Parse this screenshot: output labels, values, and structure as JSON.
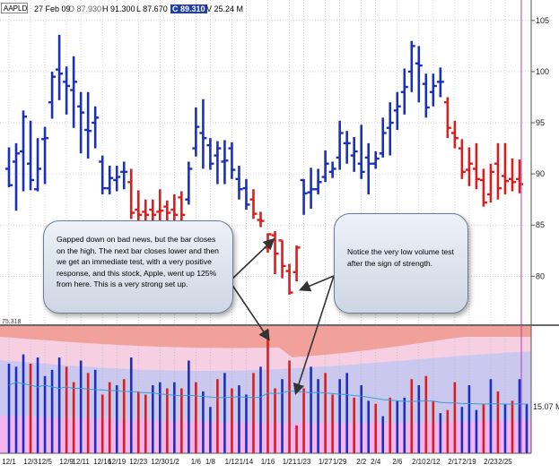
{
  "header": {
    "symbol": "AAPLD",
    "date": "27 Feb 09",
    "open": "O 87.930",
    "high": "H 91.300",
    "low": "L 87.670",
    "close": "C 89.310",
    "volume": "V 25.24 M"
  },
  "annotations": {
    "left": "Gapped down on bad news, but the bar closes on the high. The next bar closes lower and then we get an immediate test, with a very positive response, and this stock, Apple, went up 125% from here. This is a very strong set up.",
    "right": "Notice the very low volume test after the sign of strength."
  },
  "colors": {
    "up": "#1a2fc4",
    "down": "#e01b1b",
    "volume_ma": "#3a9bd6",
    "grid": "#b5b5b5",
    "pane_divider": "#6a6a6a",
    "cursor_line": "#b040b0",
    "zone_top": "#f2a19a",
    "zone_mid_pink": "#f6cfe2",
    "zone_lavender": "#cbc8ef",
    "zone_low_pink": "#f3b4ef"
  },
  "chart_data": [
    {
      "type": "ohlc",
      "title": "",
      "ylim": [
        75.3,
        107
      ],
      "yticks": [
        80,
        85,
        90,
        95,
        100,
        105
      ],
      "partial_tick_label": "75.318",
      "x_tick_labels": [
        "12/1",
        "12/3",
        "12/5",
        "12/9",
        "12/11",
        "12/16",
        "12/19",
        "12/23",
        "12/30",
        "1/2",
        "1/6",
        "1/8",
        "1/12",
        "1/14",
        "1/16",
        "1/21",
        "1/23",
        "1/27",
        "1/29",
        "2/2",
        "2/4",
        "2/6",
        "2/10",
        "2/12",
        "2/17",
        "2/19",
        "2/23",
        "2/25"
      ],
      "bars": [
        {
          "o": 90.5,
          "h": 92.6,
          "l": 88.7,
          "c": 88.9,
          "dir": "up"
        },
        {
          "o": 91.2,
          "h": 93.0,
          "l": 86.4,
          "c": 92.0,
          "dir": "up"
        },
        {
          "o": 92.2,
          "h": 96.2,
          "l": 88.3,
          "c": 95.6,
          "dir": "up"
        },
        {
          "o": 91.0,
          "h": 95.2,
          "l": 88.4,
          "c": 89.4,
          "dir": "up"
        },
        {
          "o": 88.5,
          "h": 93.5,
          "l": 88.3,
          "c": 90.5,
          "dir": "up"
        },
        {
          "o": 93.4,
          "h": 94.6,
          "l": 89.0,
          "c": 93.5,
          "dir": "up"
        },
        {
          "o": 97.0,
          "h": 100.0,
          "l": 95.4,
          "c": 99.5,
          "dir": "up"
        },
        {
          "o": 100.2,
          "h": 103.6,
          "l": 97.2,
          "c": 99.8,
          "dir": "up"
        },
        {
          "o": 99.0,
          "h": 100.5,
          "l": 95.8,
          "c": 98.6,
          "dir": "up"
        },
        {
          "o": 98.2,
          "h": 101.5,
          "l": 94.5,
          "c": 99.0,
          "dir": "up"
        },
        {
          "o": 96.6,
          "h": 98.0,
          "l": 92.0,
          "c": 96.0,
          "dir": "up"
        },
        {
          "o": 94.3,
          "h": 98.0,
          "l": 91.5,
          "c": 94.2,
          "dir": "up"
        },
        {
          "o": 95.0,
          "h": 96.6,
          "l": 92.5,
          "c": 95.5,
          "dir": "up"
        },
        {
          "o": 91.2,
          "h": 91.8,
          "l": 88.0,
          "c": 88.6,
          "dir": "up"
        },
        {
          "o": 88.6,
          "h": 90.8,
          "l": 88.0,
          "c": 89.6,
          "dir": "up"
        },
        {
          "o": 89.4,
          "h": 90.8,
          "l": 88.3,
          "c": 89.7,
          "dir": "up"
        },
        {
          "o": 90.2,
          "h": 91.2,
          "l": 88.5,
          "c": 90.2,
          "dir": "up"
        },
        {
          "o": 89.2,
          "h": 90.5,
          "l": 85.6,
          "c": 86.2,
          "dir": "down"
        },
        {
          "o": 86.5,
          "h": 88.4,
          "l": 85.2,
          "c": 86.0,
          "dir": "down"
        },
        {
          "o": 86.3,
          "h": 87.5,
          "l": 85.2,
          "c": 86.0,
          "dir": "down"
        },
        {
          "o": 86.5,
          "h": 87.5,
          "l": 85.2,
          "c": 86.0,
          "dir": "down"
        },
        {
          "o": 86.3,
          "h": 88.5,
          "l": 85.4,
          "c": 86.4,
          "dir": "down"
        },
        {
          "o": 86.8,
          "h": 87.4,
          "l": 85.3,
          "c": 86.2,
          "dir": "down"
        },
        {
          "o": 86.5,
          "h": 88.0,
          "l": 85.2,
          "c": 86.0,
          "dir": "down"
        },
        {
          "o": 87.7,
          "h": 88.3,
          "l": 85.4,
          "c": 86.0,
          "dir": "down"
        },
        {
          "o": 87.5,
          "h": 91.2,
          "l": 87.0,
          "c": 90.5,
          "dir": "up"
        },
        {
          "o": 92.5,
          "h": 96.5,
          "l": 91.7,
          "c": 94.6,
          "dir": "up"
        },
        {
          "o": 94.0,
          "h": 97.3,
          "l": 90.5,
          "c": 93.5,
          "dir": "up"
        },
        {
          "o": 92.8,
          "h": 93.5,
          "l": 90.4,
          "c": 91.0,
          "dir": "up"
        },
        {
          "o": 91.8,
          "h": 93.2,
          "l": 89.0,
          "c": 92.5,
          "dir": "up"
        },
        {
          "o": 91.2,
          "h": 93.3,
          "l": 89.0,
          "c": 91.3,
          "dir": "up"
        },
        {
          "o": 92.5,
          "h": 93.1,
          "l": 89.5,
          "c": 90.4,
          "dir": "up"
        },
        {
          "o": 89.5,
          "h": 90.8,
          "l": 87.5,
          "c": 88.5,
          "dir": "up"
        },
        {
          "o": 88.6,
          "h": 89.5,
          "l": 86.5,
          "c": 87.0,
          "dir": "up"
        },
        {
          "o": 87.5,
          "h": 88.5,
          "l": 85.6,
          "c": 86.1,
          "dir": "down"
        },
        {
          "o": 85.5,
          "h": 86.3,
          "l": 84.8,
          "c": 85.4,
          "dir": "down"
        },
        {
          "o": 82.8,
          "h": 84.2,
          "l": 82.3,
          "c": 84.1,
          "dir": "down"
        },
        {
          "o": 84.0,
          "h": 84.4,
          "l": 80.2,
          "c": 82.2,
          "dir": "down"
        },
        {
          "o": 83.5,
          "h": 83.5,
          "l": 79.8,
          "c": 81.0,
          "dir": "down"
        },
        {
          "o": 80.5,
          "h": 81.2,
          "l": 78.2,
          "c": 78.4,
          "dir": "down"
        },
        {
          "o": 80.4,
          "h": 83.0,
          "l": 79.5,
          "c": 82.8,
          "dir": "down"
        },
        {
          "o": 89.4,
          "h": 89.5,
          "l": 86.0,
          "c": 88.1,
          "dir": "up"
        },
        {
          "o": 88.2,
          "h": 90.6,
          "l": 86.6,
          "c": 88.5,
          "dir": "up"
        },
        {
          "o": 88.5,
          "h": 90.5,
          "l": 88.0,
          "c": 89.2,
          "dir": "up"
        },
        {
          "o": 89.7,
          "h": 92.3,
          "l": 89.2,
          "c": 91.0,
          "dir": "up"
        },
        {
          "o": 90.2,
          "h": 91.2,
          "l": 89.6,
          "c": 90.5,
          "dir": "up"
        },
        {
          "o": 91.6,
          "h": 95.2,
          "l": 90.4,
          "c": 94.0,
          "dir": "up"
        },
        {
          "o": 93.0,
          "h": 94.2,
          "l": 91.0,
          "c": 93.0,
          "dir": "up"
        },
        {
          "o": 91.8,
          "h": 93.6,
          "l": 90.2,
          "c": 92.2,
          "dir": "up"
        },
        {
          "o": 91.0,
          "h": 94.8,
          "l": 89.5,
          "c": 90.2,
          "dir": "up"
        },
        {
          "o": 91.6,
          "h": 93.0,
          "l": 88.0,
          "c": 91.0,
          "dir": "up"
        },
        {
          "o": 91.0,
          "h": 92.2,
          "l": 90.5,
          "c": 91.5,
          "dir": "up"
        },
        {
          "o": 92.0,
          "h": 95.5,
          "l": 91.6,
          "c": 94.0,
          "dir": "up"
        },
        {
          "o": 94.5,
          "h": 97.0,
          "l": 91.8,
          "c": 95.0,
          "dir": "up"
        },
        {
          "o": 96.2,
          "h": 98.0,
          "l": 94.3,
          "c": 96.6,
          "dir": "up"
        },
        {
          "o": 98.0,
          "h": 100.3,
          "l": 95.8,
          "c": 98.5,
          "dir": "up"
        },
        {
          "o": 100.0,
          "h": 103.0,
          "l": 98.0,
          "c": 102.5,
          "dir": "up"
        },
        {
          "o": 100.8,
          "h": 102.5,
          "l": 97.0,
          "c": 100.6,
          "dir": "up"
        },
        {
          "o": 98.8,
          "h": 99.8,
          "l": 95.5,
          "c": 96.5,
          "dir": "up"
        },
        {
          "o": 98.0,
          "h": 99.8,
          "l": 96.6,
          "c": 98.6,
          "dir": "up"
        },
        {
          "o": 99.0,
          "h": 100.4,
          "l": 97.5,
          "c": 99.0,
          "dir": "up"
        },
        {
          "o": 97.0,
          "h": 97.5,
          "l": 93.5,
          "c": 94.5,
          "dir": "down"
        },
        {
          "o": 94.0,
          "h": 95.2,
          "l": 92.5,
          "c": 93.5,
          "dir": "down"
        },
        {
          "o": 92.5,
          "h": 93.4,
          "l": 89.5,
          "c": 90.2,
          "dir": "down"
        },
        {
          "o": 90.4,
          "h": 92.6,
          "l": 88.8,
          "c": 91.0,
          "dir": "down"
        },
        {
          "o": 90.5,
          "h": 93.0,
          "l": 88.5,
          "c": 89.5,
          "dir": "down"
        },
        {
          "o": 89.4,
          "h": 90.5,
          "l": 86.8,
          "c": 87.2,
          "dir": "down"
        },
        {
          "o": 88.0,
          "h": 91.0,
          "l": 87.2,
          "c": 90.2,
          "dir": "down"
        },
        {
          "o": 91.0,
          "h": 93.0,
          "l": 87.5,
          "c": 88.6,
          "dir": "down"
        },
        {
          "o": 89.8,
          "h": 93.0,
          "l": 88.0,
          "c": 89.3,
          "dir": "down"
        },
        {
          "o": 89.5,
          "h": 91.5,
          "l": 88.3,
          "c": 89.2,
          "dir": "down"
        },
        {
          "o": 89.5,
          "h": 91.4,
          "l": 88.1,
          "c": 89.0,
          "dir": "down"
        }
      ]
    },
    {
      "type": "bar",
      "title": "",
      "ylabel": "",
      "ylim": [
        0,
        40
      ],
      "yticks": [
        15.07
      ],
      "ytick_labels": [
        "15.07 M"
      ],
      "volume_m": [
        29,
        28,
        32,
        29,
        31,
        25,
        27,
        31,
        28,
        23,
        30,
        26,
        27,
        19,
        23,
        22,
        24,
        31,
        20,
        19,
        22,
        23,
        21,
        23,
        21,
        30,
        23,
        20,
        15,
        24,
        26,
        21,
        22,
        19,
        26,
        28,
        40,
        21,
        24,
        30,
        9,
        21,
        28,
        24,
        26,
        19,
        24,
        26,
        18,
        22,
        17,
        16,
        12,
        18,
        17,
        18,
        24,
        22,
        25,
        17,
        13,
        14,
        23,
        15,
        22,
        14,
        16,
        24,
        20,
        16,
        17,
        24,
        16
      ],
      "volume_dir": [
        "up",
        "up",
        "up",
        "down",
        "up",
        "up",
        "up",
        "up",
        "down",
        "down",
        "up",
        "down",
        "up",
        "down",
        "down",
        "up",
        "down",
        "up",
        "down",
        "down",
        "up",
        "up",
        "down",
        "up",
        "down",
        "up",
        "down",
        "up",
        "up",
        "down",
        "up",
        "down",
        "up",
        "up",
        "down",
        "up",
        "down",
        "down",
        "up",
        "down",
        "down",
        "down",
        "up",
        "up",
        "down",
        "down",
        "up",
        "up",
        "down",
        "up",
        "up",
        "down",
        "up",
        "down",
        "up",
        "up",
        "down",
        "up",
        "down",
        "down",
        "up",
        "down",
        "down",
        "up",
        "up",
        "up",
        "down",
        "up",
        "down",
        "up",
        "down",
        "up",
        "up"
      ],
      "moving_average_m": [
        22,
        23,
        22.5,
        22,
        21.5,
        22,
        21.5,
        21,
        21.5,
        21,
        21,
        20.8,
        20.6,
        20.5,
        20.3,
        20.3,
        20,
        20,
        19.7,
        19.6,
        19.5,
        19.2,
        19,
        18.8,
        18.6,
        18.8,
        18.6,
        18.4,
        18.2,
        18,
        18,
        18.2,
        18.3,
        18.1,
        18,
        18.2,
        19.5,
        19.3,
        19.5,
        20.2,
        20,
        19.8,
        19.6,
        19.7,
        19.5,
        19.3,
        19.1,
        19,
        18.7,
        18.5,
        18.1,
        17.8,
        17.4,
        17.2,
        17,
        16.8,
        16.8,
        16.9,
        17,
        16.9,
        16.5,
        16.3,
        16.3,
        16.1,
        16.1,
        16,
        15.9,
        16,
        16,
        15.9,
        15.9,
        16,
        15.9
      ]
    }
  ]
}
